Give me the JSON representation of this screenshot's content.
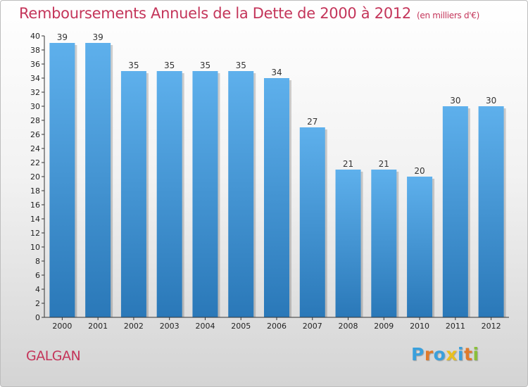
{
  "header": {
    "title": "Remboursements Annuels de la Dette de 2000 à 2012",
    "unit": "(en milliers d'€)"
  },
  "footer": {
    "place": "GALGAN",
    "brand_letters": [
      "P",
      "r",
      "o",
      "x",
      "i",
      "t",
      "i"
    ],
    "brand_colors": [
      "#3aa0dc",
      "#e07a2a",
      "#3aa0dc",
      "#e8c020",
      "#3aa0dc",
      "#e07a2a",
      "#8ac03a"
    ]
  },
  "colors": {
    "title": "#c4355a",
    "bar_top": "#5eb0ec",
    "bar_bottom": "#2a78b8",
    "axis": "#333333"
  },
  "chart_data": {
    "type": "bar",
    "categories": [
      "2000",
      "2001",
      "2002",
      "2003",
      "2004",
      "2005",
      "2006",
      "2007",
      "2008",
      "2009",
      "2010",
      "2011",
      "2012"
    ],
    "values": [
      39,
      39,
      35,
      35,
      35,
      35,
      34,
      27,
      21,
      21,
      20,
      30,
      30
    ],
    "ylim": [
      0,
      40
    ],
    "yticks": [
      0,
      2,
      4,
      6,
      8,
      10,
      12,
      14,
      16,
      18,
      20,
      22,
      24,
      26,
      28,
      30,
      32,
      34,
      36,
      38,
      40
    ],
    "grid": false,
    "data_labels": true
  }
}
